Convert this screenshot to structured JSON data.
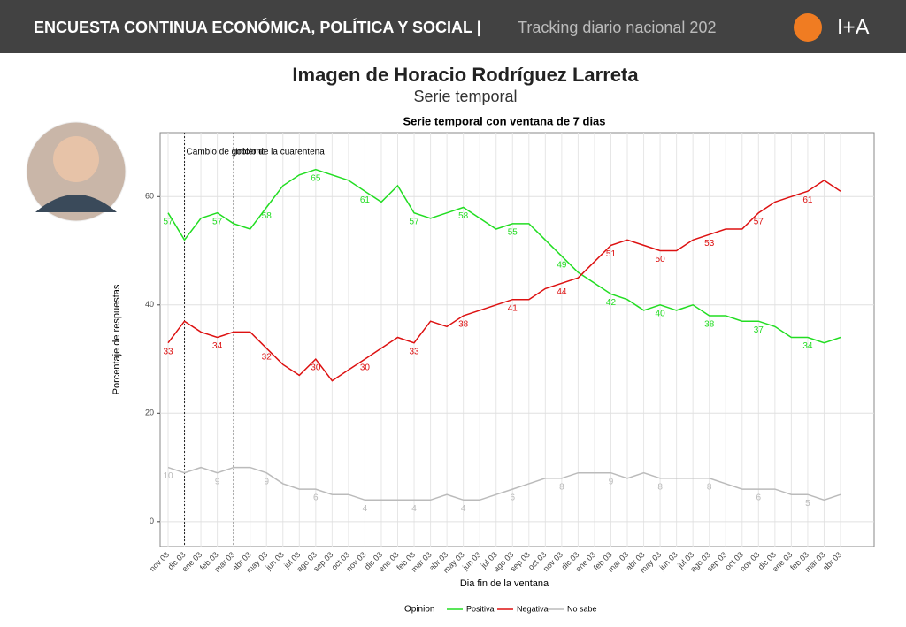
{
  "header": {
    "title": "ENCUESTA CONTINUA ECONÓMICA, POLÍTICA Y SOCIAL |",
    "subtitle": "Tracking diario nacional 202",
    "logo": "I+A"
  },
  "page_title": "Imagen de Horacio Rodríguez Larreta",
  "page_subtitle": "Serie temporal",
  "chart_data": {
    "type": "line",
    "title": "Serie temporal con ventana de 7 dias",
    "x_label": "Dia fin de la ventana",
    "y_label": "Porcentaje de respuestas",
    "legend_title": "Opinion",
    "categories": [
      "nov 03",
      "dic 03",
      "ene 03",
      "feb 03",
      "mar 03",
      "abr 03",
      "may 03",
      "jun 03",
      "jul 03",
      "ago 03",
      "sep 03",
      "oct 03",
      "nov 03",
      "dic 03",
      "ene 03",
      "feb 03",
      "mar 03",
      "abr 03",
      "may 03",
      "jun 03",
      "jul 03",
      "ago 03",
      "sep 03",
      "oct 03",
      "nov 03",
      "dic 03",
      "ene 03",
      "feb 03",
      "mar 03",
      "abr 03",
      "may 03",
      "jun 03",
      "jul 03",
      "ago 03",
      "sep 03",
      "oct 03",
      "nov 03",
      "dic 03",
      "ene 03",
      "feb 03",
      "mar 03",
      "abr 03"
    ],
    "series": [
      {
        "name": "Positiva",
        "color": "#22dd22",
        "values": [
          57,
          52,
          56,
          57,
          55,
          54,
          58,
          62,
          64,
          65,
          64,
          63,
          61,
          59,
          62,
          57,
          56,
          57,
          58,
          56,
          54,
          55,
          55,
          52,
          49,
          46,
          44,
          42,
          41,
          39,
          40,
          39,
          40,
          38,
          38,
          37,
          37,
          36,
          34,
          34,
          33,
          34
        ]
      },
      {
        "name": "Negativa",
        "color": "#dd1111",
        "values": [
          33,
          37,
          35,
          34,
          35,
          35,
          32,
          29,
          27,
          30,
          26,
          28,
          30,
          32,
          34,
          33,
          37,
          36,
          38,
          39,
          40,
          41,
          41,
          43,
          44,
          45,
          48,
          51,
          52,
          51,
          50,
          50,
          52,
          53,
          54,
          54,
          57,
          59,
          60,
          61,
          63,
          61
        ]
      },
      {
        "name": "No sabe",
        "color": "#bbbbbb",
        "values": [
          10,
          9,
          10,
          9,
          10,
          10,
          9,
          7,
          6,
          6,
          5,
          5,
          4,
          4,
          4,
          4,
          4,
          5,
          4,
          4,
          5,
          6,
          7,
          8,
          8,
          9,
          9,
          9,
          8,
          9,
          8,
          8,
          8,
          8,
          7,
          6,
          6,
          6,
          5,
          5,
          4,
          5
        ]
      }
    ],
    "annotations": [
      {
        "text": "Cambio de gobierno",
        "x": 1
      },
      {
        "text": "Inicio de la cuarentena",
        "x": 4
      }
    ],
    "ylim": [
      -4.6,
      71.8
    ],
    "yticks": [
      0,
      20,
      40,
      60
    ],
    "grid": true,
    "legend": "bottom"
  }
}
